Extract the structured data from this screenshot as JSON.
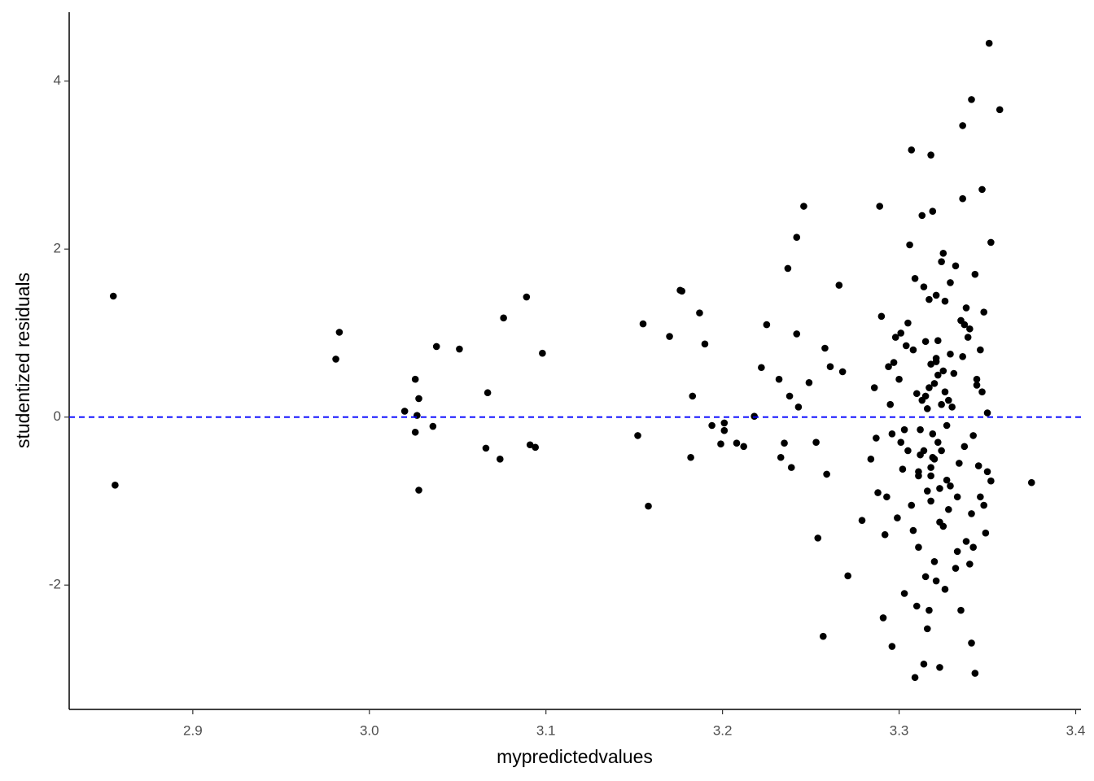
{
  "chart_data": {
    "type": "scatter",
    "x_label": "mypredictedvalues",
    "y_label": "studentized residuals",
    "xlim": [
      2.83,
      3.403
    ],
    "ylim": [
      -3.48,
      4.82
    ],
    "xticks": [
      2.9,
      {
        "value": 3,
        "label": "3.0"
      },
      3.1,
      3.2,
      3.3,
      3.4
    ],
    "yticks": [
      -2,
      0,
      2,
      4
    ],
    "color": "#000000",
    "hline": 0,
    "hline_color": "#0000ff",
    "x": [
      2.855,
      2.856,
      2.981,
      2.983,
      3.02,
      3.026,
      3.028,
      3.027,
      3.026,
      3.028,
      3.036,
      3.038,
      3.051,
      3.067,
      3.066,
      3.074,
      3.076,
      3.089,
      3.091,
      3.094,
      3.098,
      3.152,
      3.155,
      3.158,
      3.17,
      3.176,
      3.177,
      3.182,
      3.183,
      3.187,
      3.19,
      3.194,
      3.199,
      3.201,
      3.201,
      3.208,
      3.212,
      3.218,
      3.222,
      3.225,
      3.232,
      3.233,
      3.235,
      3.237,
      3.238,
      3.239,
      3.242,
      3.242,
      3.243,
      3.246,
      3.249,
      3.253,
      3.254,
      3.257,
      3.258,
      3.259,
      3.261,
      3.266,
      3.268,
      3.271,
      3.289,
      3.307,
      3.318,
      3.336,
      3.341,
      3.336,
      3.351,
      3.357,
      3.347,
      3.352,
      3.375,
      3.352,
      3.309,
      3.323,
      3.343,
      3.341,
      3.296,
      3.314,
      3.316,
      3.291,
      3.279,
      3.3,
      3.302,
      3.305,
      3.308,
      3.31,
      3.312,
      3.314,
      3.316,
      3.318,
      3.32,
      3.322,
      3.324,
      3.326,
      3.328,
      3.33,
      3.332,
      3.334,
      3.336,
      3.338,
      3.34,
      3.342,
      3.344,
      3.346,
      3.348,
      3.35,
      3.301,
      3.304,
      3.307,
      3.309,
      3.311,
      3.313,
      3.315,
      3.317,
      3.319,
      3.321,
      3.323,
      3.325,
      3.327,
      3.329,
      3.331,
      3.333,
      3.335,
      3.337,
      3.339,
      3.341,
      3.343,
      3.345,
      3.347,
      3.349,
      3.284,
      3.286,
      3.288,
      3.29,
      3.292,
      3.294,
      3.296,
      3.298,
      3.303,
      3.306,
      3.31,
      3.313,
      3.317,
      3.319,
      3.321,
      3.324,
      3.326,
      3.329,
      3.332,
      3.335,
      3.338,
      3.342,
      3.346,
      3.35,
      3.312,
      3.315,
      3.318,
      3.32,
      3.322,
      3.325,
      3.327,
      3.316,
      3.319,
      3.321,
      3.323,
      3.317,
      3.32,
      3.324,
      3.318,
      3.322,
      3.314,
      3.326,
      3.311,
      3.328,
      3.293,
      3.297,
      3.299,
      3.301,
      3.305,
      3.308,
      3.311,
      3.315,
      3.318,
      3.321,
      3.325,
      3.329,
      3.333,
      3.337,
      3.34,
      3.344,
      3.348,
      3.287,
      3.295,
      3.303
    ],
    "values": [
      1.44,
      -0.81,
      0.69,
      1.01,
      0.07,
      0.45,
      0.22,
      0.02,
      -0.18,
      -0.87,
      -0.11,
      0.84,
      0.81,
      0.29,
      -0.37,
      -0.5,
      1.18,
      1.43,
      -0.33,
      -0.36,
      0.76,
      -0.22,
      1.11,
      -1.06,
      0.96,
      1.51,
      1.5,
      -0.48,
      0.25,
      1.24,
      0.87,
      -0.1,
      -0.32,
      -0.07,
      -0.16,
      -0.31,
      -0.35,
      0.01,
      0.59,
      1.1,
      0.45,
      -0.48,
      -0.31,
      1.77,
      0.25,
      -0.6,
      0.99,
      2.14,
      0.12,
      2.51,
      0.41,
      -0.3,
      -1.44,
      -2.61,
      0.82,
      -0.68,
      0.6,
      1.57,
      0.54,
      -1.89,
      2.51,
      3.18,
      3.12,
      2.6,
      3.78,
      3.47,
      4.45,
      3.66,
      2.71,
      2.08,
      -0.78,
      -0.76,
      -3.1,
      -2.98,
      -3.05,
      -2.69,
      -2.73,
      -2.94,
      -2.52,
      -2.39,
      -1.23,
      0.45,
      -0.62,
      1.12,
      -1.35,
      0.28,
      -0.15,
      1.55,
      -0.88,
      0.63,
      -1.72,
      0.91,
      -0.4,
      1.38,
      -1.1,
      0.12,
      1.8,
      -0.55,
      0.72,
      -1.48,
      1.05,
      -0.22,
      0.38,
      -0.95,
      1.25,
      0.05,
      -0.3,
      0.85,
      -1.05,
      1.65,
      -0.7,
      0.2,
      -1.9,
      1.4,
      -0.48,
      0.66,
      -1.25,
      1.95,
      -0.1,
      -0.82,
      0.52,
      -1.6,
      1.15,
      -0.35,
      0.95,
      -1.15,
      1.7,
      -0.58,
      0.3,
      -1.38,
      -0.5,
      0.35,
      -0.9,
      1.2,
      -1.4,
      0.6,
      -0.2,
      0.95,
      -2.1,
      2.05,
      -2.25,
      2.4,
      -2.3,
      2.45,
      -1.95,
      1.85,
      -2.05,
      1.6,
      -1.8,
      -2.3,
      1.3,
      -1.55,
      0.8,
      -0.65,
      -0.45,
      0.25,
      -0.6,
      0.4,
      -0.3,
      0.55,
      -0.75,
      0.1,
      -0.2,
      0.7,
      -0.85,
      0.35,
      -0.5,
      0.15,
      -1.0,
      0.5,
      -0.4,
      0.3,
      -0.65,
      0.2,
      -0.95,
      0.65,
      -1.2,
      1.0,
      -0.4,
      0.8,
      -1.55,
      0.9,
      -0.7,
      1.45,
      -1.3,
      0.75,
      -0.95,
      1.1,
      -1.75,
      0.45,
      -1.05,
      -0.25,
      0.15,
      -0.15
    ]
  }
}
